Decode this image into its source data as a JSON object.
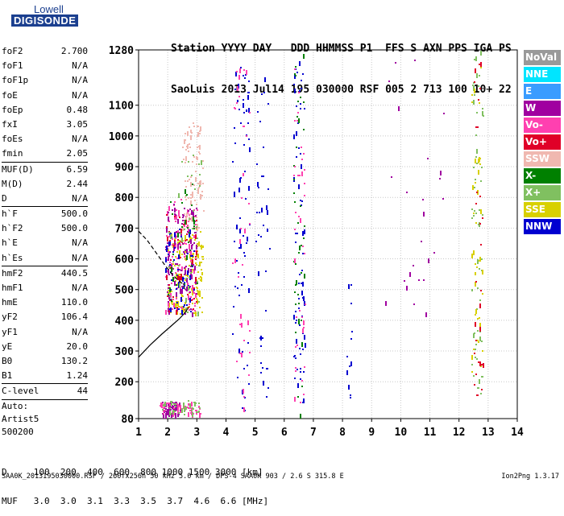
{
  "logo": {
    "line1": "Lowell",
    "line2": "DIGISONDE"
  },
  "header": {
    "labels": "Station YYYY DAY   DDD HHMMSS P1  FFS S AXN PPS IGA PS",
    "values": "SaoLuis 2013 Jul14 195 030000 RSF 005 2 713 100 10+ 22"
  },
  "params": [
    {
      "k": "foF2",
      "v": "2.700"
    },
    {
      "k": "foF1",
      "v": "N/A"
    },
    {
      "k": "foF1p",
      "v": "N/A"
    },
    {
      "k": "foE",
      "v": "N/A"
    },
    {
      "k": "foEp",
      "v": "0.48"
    },
    {
      "k": "fxI",
      "v": "3.05"
    },
    {
      "k": "foEs",
      "v": "N/A"
    },
    {
      "k": "fmin",
      "v": "2.05"
    },
    {
      "k": "MUF(D)",
      "v": "6.59"
    },
    {
      "k": "M(D)",
      "v": "2.44"
    },
    {
      "k": "D",
      "v": "N/A"
    },
    {
      "k": "h`F",
      "v": "500.0"
    },
    {
      "k": "h`F2",
      "v": "500.0"
    },
    {
      "k": "h`E",
      "v": "N/A"
    },
    {
      "k": "h`Es",
      "v": "N/A"
    },
    {
      "k": "hmF2",
      "v": "440.5"
    },
    {
      "k": "hmF1",
      "v": "N/A"
    },
    {
      "k": "hmE",
      "v": "110.0"
    },
    {
      "k": "yF2",
      "v": "106.4"
    },
    {
      "k": "yF1",
      "v": "N/A"
    },
    {
      "k": "yE",
      "v": "20.0"
    },
    {
      "k": "B0",
      "v": "130.2"
    },
    {
      "k": "B1",
      "v": "1.24"
    },
    {
      "k": "C-level",
      "v": "44"
    }
  ],
  "auto": [
    "Auto:",
    "Artist5",
    "500200"
  ],
  "legend": [
    {
      "label": "NoVal",
      "color": "#999999"
    },
    {
      "label": "NNE",
      "color": "#00e5ff"
    },
    {
      "label": "E",
      "color": "#3a9cff"
    },
    {
      "label": "W",
      "color": "#a000a0"
    },
    {
      "label": "Vo-",
      "color": "#ff40b0"
    },
    {
      "label": "Vo+",
      "color": "#e00028"
    },
    {
      "label": "SSW",
      "color": "#f0b8b0"
    },
    {
      "label": "X-",
      "color": "#008000"
    },
    {
      "label": "X+",
      "color": "#80c060"
    },
    {
      "label": "SSE",
      "color": "#d8d000"
    },
    {
      "label": "NNW",
      "color": "#0000d0"
    }
  ],
  "footer": {
    "d_row": "D     100  200  400  600  800 1000 1500 3000 [km]",
    "muf_row": "MUF   3.0  3.0  3.1  3.3  3.5  3.7  4.6  6.6 [MHz]",
    "info": "SAA0K_2013195030000.RSF / 260fx256h 50 kHz 5.0 km / DPS-4 SAA0K 903 / 2.6 S 315.8 E",
    "version": "Ion2Png 1.3.17"
  },
  "chart_data": {
    "type": "scatter",
    "xlabel": "",
    "ylabel": "",
    "xlim": [
      1,
      14
    ],
    "ylim": [
      80,
      1280
    ],
    "xticks": [
      1,
      2,
      3,
      4,
      5,
      6,
      7,
      8,
      9,
      10,
      11,
      12,
      13,
      14
    ],
    "yticks": [
      80,
      200,
      300,
      400,
      500,
      600,
      700,
      800,
      900,
      1000,
      1100,
      1280
    ],
    "grid": true,
    "legend_position": "right",
    "series": [
      {
        "name": "Profile",
        "style": "solid",
        "x": [
          1.0,
          1.4,
          1.8,
          2.1,
          2.4,
          2.6,
          2.7
        ],
        "y": [
          280,
          320,
          355,
          380,
          405,
          425,
          440
        ]
      },
      {
        "name": "Trace",
        "style": "dashed",
        "x": [
          1.0,
          1.3,
          1.6,
          1.9,
          2.1,
          2.3,
          2.5,
          2.6
        ],
        "y": [
          690,
          660,
          620,
          580,
          555,
          535,
          520,
          500
        ]
      }
    ],
    "echo_clusters": [
      {
        "color": "SSE",
        "x": [
          2.0,
          3.2
        ],
        "y": [
          420,
          700
        ],
        "n": 160
      },
      {
        "color": "Vo-",
        "x": [
          1.9,
          3.0
        ],
        "y": [
          430,
          800
        ],
        "n": 120
      },
      {
        "color": "W",
        "x": [
          1.9,
          3.0
        ],
        "y": [
          420,
          780
        ],
        "n": 110
      },
      {
        "color": "NNW",
        "x": [
          1.9,
          2.9
        ],
        "y": [
          430,
          700
        ],
        "n": 60
      },
      {
        "color": "SSW",
        "x": [
          2.5,
          3.2
        ],
        "y": [
          700,
          1050
        ],
        "n": 90
      },
      {
        "color": "Vo+",
        "x": [
          1.9,
          3.0
        ],
        "y": [
          430,
          750
        ],
        "n": 50
      },
      {
        "color": "X+",
        "x": [
          2.0,
          3.2
        ],
        "y": [
          420,
          950
        ],
        "n": 40
      },
      {
        "color": "X-",
        "x": [
          2.0,
          3.0
        ],
        "y": [
          430,
          850
        ],
        "n": 30
      },
      {
        "color": "W",
        "x": [
          1.8,
          2.4
        ],
        "y": [
          95,
          135
        ],
        "n": 80
      },
      {
        "color": "Vo-",
        "x": [
          1.7,
          3.1
        ],
        "y": [
          95,
          135
        ],
        "n": 60
      },
      {
        "color": "X+",
        "x": [
          1.7,
          3.1
        ],
        "y": [
          95,
          140
        ],
        "n": 40
      },
      {
        "color": "NNW",
        "x": [
          4.2,
          4.8
        ],
        "y": [
          90,
          1250
        ],
        "n": 70
      },
      {
        "color": "Vo-",
        "x": [
          4.2,
          4.8
        ],
        "y": [
          100,
          1250
        ],
        "n": 40
      },
      {
        "color": "NNW",
        "x": [
          5.0,
          5.5
        ],
        "y": [
          150,
          1200
        ],
        "n": 40
      },
      {
        "color": "NNW",
        "x": [
          6.3,
          6.7
        ],
        "y": [
          90,
          1270
        ],
        "n": 70
      },
      {
        "color": "X-",
        "x": [
          6.3,
          6.7
        ],
        "y": [
          90,
          1270
        ],
        "n": 40
      },
      {
        "color": "Vo-",
        "x": [
          6.3,
          6.7
        ],
        "y": [
          100,
          1250
        ],
        "n": 40
      },
      {
        "color": "NNW",
        "x": [
          8.1,
          8.3
        ],
        "y": [
          150,
          520
        ],
        "n": 12
      },
      {
        "color": "W",
        "x": [
          9.3,
          11.5
        ],
        "y": [
          300,
          1250
        ],
        "n": 25
      },
      {
        "color": "X+",
        "x": [
          12.4,
          12.8
        ],
        "y": [
          150,
          1280
        ],
        "n": 60
      },
      {
        "color": "SSE",
        "x": [
          12.4,
          12.8
        ],
        "y": [
          150,
          1280
        ],
        "n": 40
      },
      {
        "color": "Vo+",
        "x": [
          12.5,
          12.8
        ],
        "y": [
          150,
          1250
        ],
        "n": 30
      }
    ]
  }
}
